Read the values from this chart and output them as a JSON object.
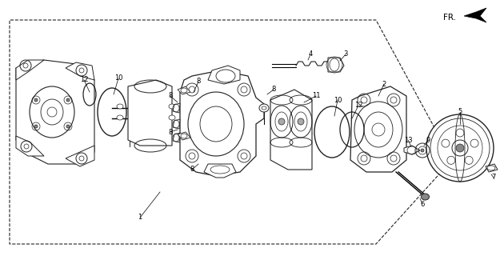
{
  "bg_color": "#ffffff",
  "lc": "#222222",
  "fig_width": 6.25,
  "fig_height": 3.2,
  "dpi": 100,
  "fr_label": "FR.",
  "note_font_size": 6.0
}
